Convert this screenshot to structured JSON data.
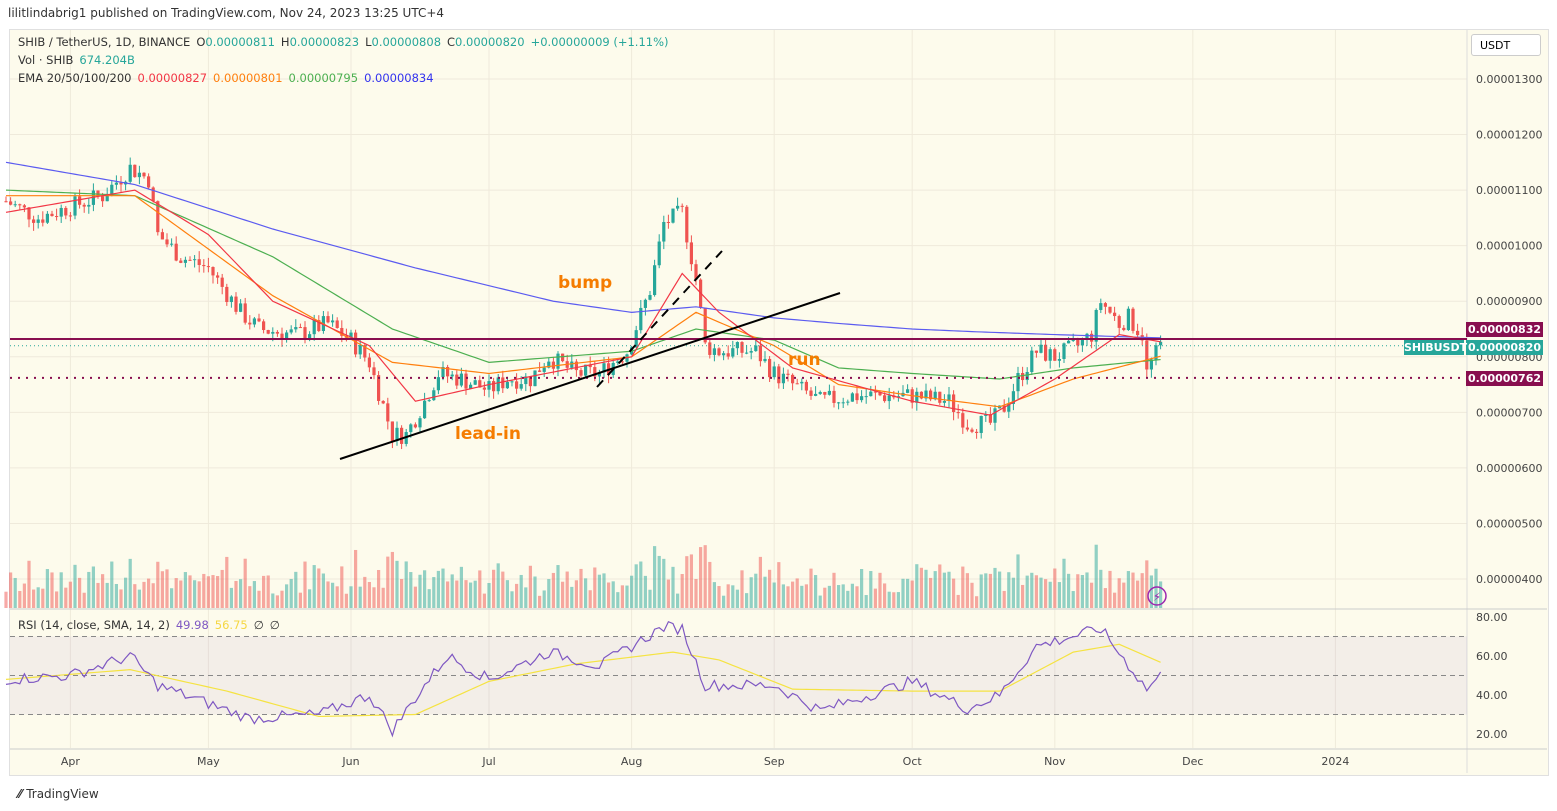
{
  "published": "lilitlindabrig1 published on TradingView.com, Nov 24, 2023 13:25 UTC+4",
  "legend": {
    "symbol": "SHIB / TetherUS, 1D, BINANCE",
    "o_label": "O",
    "o": "0.00000811",
    "h_label": "H",
    "h": "0.00000823",
    "l_label": "L",
    "l": "0.00000808",
    "c_label": "C",
    "c": "0.00000820",
    "change": "+0.00000009 (+1.11%)",
    "vol_label": "Vol · SHIB",
    "vol": "674.204B",
    "ema_label": "EMA 20/50/100/200",
    "ema20": "0.00000827",
    "ema50": "0.00000801",
    "ema100": "0.00000795",
    "ema200": "0.00000834",
    "rsi_label": "RSI (14, close, SMA, 14, 2)",
    "rsi": "49.98",
    "rsi_sma": "56.75",
    "rsi_extra1": "∅",
    "rsi_extra2": "∅"
  },
  "currency_button": "USDT",
  "price_tags": {
    "upper": "0.00000832",
    "symbol": "SHIBUSDT",
    "last": "0.00000820",
    "lower": "0.00000762"
  },
  "annotations": {
    "bump": "bump",
    "run": "run",
    "lead_in": "lead-in"
  },
  "footer": "TradingView",
  "colors": {
    "up": "#26a69a",
    "down": "#ef5350",
    "ema20": "#f23645",
    "ema50": "#ff7f0e",
    "ema100": "#4caf50",
    "ema200": "#5b5bf0",
    "rsi": "#7e57c2",
    "rsi_sma": "#f5e342",
    "level": "#880e4f"
  },
  "chart_data": {
    "type": "candlestick",
    "price_unit": "1e-6 USDT",
    "y_ticks": [
      "0.00001300",
      "0.00001200",
      "0.00001100",
      "0.00001000",
      "0.00000900",
      "0.00000800",
      "0.00000700",
      "0.00000600",
      "0.00000500",
      "0.00000400"
    ],
    "x_ticks": [
      "Apr",
      "May",
      "Jun",
      "Jul",
      "Aug",
      "Sep",
      "Oct",
      "Nov",
      "Dec",
      "2024"
    ],
    "rsi_ticks": [
      "80.00",
      "60.00",
      "40.00",
      "20.00"
    ],
    "levels": [
      8.32,
      7.62
    ],
    "close_approx": [
      [
        "2023-03-18",
        10.8
      ],
      [
        "2023-03-25",
        10.5
      ],
      [
        "2023-04-01",
        10.7
      ],
      [
        "2023-04-08",
        10.9
      ],
      [
        "2023-04-14",
        11.4
      ],
      [
        "2023-04-18",
        11.2
      ],
      [
        "2023-04-20",
        10.2
      ],
      [
        "2023-04-25",
        9.8
      ],
      [
        "2023-05-01",
        9.6
      ],
      [
        "2023-05-08",
        8.8
      ],
      [
        "2023-05-12",
        8.5
      ],
      [
        "2023-05-20",
        8.4
      ],
      [
        "2023-05-27",
        8.6
      ],
      [
        "2023-06-01",
        8.3
      ],
      [
        "2023-06-05",
        7.9
      ],
      [
        "2023-06-10",
        6.6
      ],
      [
        "2023-06-13",
        6.6
      ],
      [
        "2023-06-17",
        7.2
      ],
      [
        "2023-06-20",
        7.7
      ],
      [
        "2023-06-25",
        7.6
      ],
      [
        "2023-07-01",
        7.4
      ],
      [
        "2023-07-05",
        7.6
      ],
      [
        "2023-07-10",
        7.6
      ],
      [
        "2023-07-14",
        8.0
      ],
      [
        "2023-07-20",
        7.7
      ],
      [
        "2023-07-25",
        7.7
      ],
      [
        "2023-07-31",
        8.1
      ],
      [
        "2023-08-05",
        9.2
      ],
      [
        "2023-08-08",
        10.4
      ],
      [
        "2023-08-12",
        10.6
      ],
      [
        "2023-08-15",
        9.4
      ],
      [
        "2023-08-17",
        8.2
      ],
      [
        "2023-08-20",
        8.1
      ],
      [
        "2023-08-28",
        8.1
      ],
      [
        "2023-09-01",
        7.7
      ],
      [
        "2023-09-05",
        7.5
      ],
      [
        "2023-09-11",
        7.2
      ],
      [
        "2023-09-18",
        7.3
      ],
      [
        "2023-09-25",
        7.3
      ],
      [
        "2023-10-01",
        7.3
      ],
      [
        "2023-10-09",
        7.2
      ],
      [
        "2023-10-13",
        6.8
      ],
      [
        "2023-10-18",
        6.8
      ],
      [
        "2023-10-21",
        7.1
      ],
      [
        "2023-10-24",
        7.6
      ],
      [
        "2023-10-28",
        8.1
      ],
      [
        "2023-11-01",
        8.0
      ],
      [
        "2023-11-06",
        8.2
      ],
      [
        "2023-11-09",
        8.4
      ],
      [
        "2023-11-11",
        9.0
      ],
      [
        "2023-11-15",
        8.6
      ],
      [
        "2023-11-17",
        8.7
      ],
      [
        "2023-11-20",
        8.4
      ],
      [
        "2023-11-21",
        7.7
      ],
      [
        "2023-11-22",
        7.9
      ],
      [
        "2023-11-24",
        8.2
      ]
    ],
    "ema20": [
      [
        "2023-03-18",
        10.6
      ],
      [
        "2023-04-15",
        11.0
      ],
      [
        "2023-05-01",
        10.2
      ],
      [
        "2023-05-15",
        9.0
      ],
      [
        "2023-06-05",
        8.2
      ],
      [
        "2023-06-15",
        7.2
      ],
      [
        "2023-07-01",
        7.5
      ],
      [
        "2023-08-01",
        8.0
      ],
      [
        "2023-08-12",
        9.5
      ],
      [
        "2023-08-20",
        8.8
      ],
      [
        "2023-09-05",
        7.8
      ],
      [
        "2023-10-01",
        7.2
      ],
      [
        "2023-10-18",
        6.95
      ],
      [
        "2023-11-01",
        7.6
      ],
      [
        "2023-11-15",
        8.4
      ],
      [
        "2023-11-24",
        8.27
      ]
    ],
    "ema50": [
      [
        "2023-03-18",
        10.9
      ],
      [
        "2023-04-15",
        10.9
      ],
      [
        "2023-05-15",
        9.1
      ],
      [
        "2023-06-10",
        7.9
      ],
      [
        "2023-07-01",
        7.7
      ],
      [
        "2023-08-01",
        8.0
      ],
      [
        "2023-08-15",
        8.8
      ],
      [
        "2023-09-01",
        8.2
      ],
      [
        "2023-09-15",
        7.5
      ],
      [
        "2023-10-01",
        7.3
      ],
      [
        "2023-10-20",
        7.1
      ],
      [
        "2023-11-05",
        7.6
      ],
      [
        "2023-11-24",
        8.01
      ]
    ],
    "ema100": [
      [
        "2023-03-18",
        11.0
      ],
      [
        "2023-04-15",
        10.9
      ],
      [
        "2023-05-15",
        9.8
      ],
      [
        "2023-06-10",
        8.5
      ],
      [
        "2023-07-01",
        7.9
      ],
      [
        "2023-08-01",
        8.1
      ],
      [
        "2023-08-15",
        8.5
      ],
      [
        "2023-09-01",
        8.3
      ],
      [
        "2023-09-15",
        7.8
      ],
      [
        "2023-10-01",
        7.7
      ],
      [
        "2023-10-20",
        7.6
      ],
      [
        "2023-11-05",
        7.8
      ],
      [
        "2023-11-24",
        7.95
      ]
    ],
    "ema200": [
      [
        "2023-03-18",
        11.5
      ],
      [
        "2023-04-15",
        11.1
      ],
      [
        "2023-05-15",
        10.3
      ],
      [
        "2023-06-15",
        9.6
      ],
      [
        "2023-07-15",
        9.0
      ],
      [
        "2023-08-01",
        8.8
      ],
      [
        "2023-08-15",
        8.9
      ],
      [
        "2023-09-01",
        8.7
      ],
      [
        "2023-09-15",
        8.6
      ],
      [
        "2023-10-01",
        8.5
      ],
      [
        "2023-10-15",
        8.45
      ],
      [
        "2023-11-01",
        8.4
      ],
      [
        "2023-11-24",
        8.34
      ]
    ],
    "rsi": [
      [
        "2023-03-18",
        48
      ],
      [
        "2023-04-01",
        50
      ],
      [
        "2023-04-14",
        60
      ],
      [
        "2023-04-20",
        45
      ],
      [
        "2023-05-10",
        28
      ],
      [
        "2023-05-25",
        30
      ],
      [
        "2023-06-05",
        40
      ],
      [
        "2023-06-10",
        22
      ],
      [
        "2023-06-17",
        45
      ],
      [
        "2023-06-22",
        60
      ],
      [
        "2023-07-01",
        48
      ],
      [
        "2023-07-14",
        62
      ],
      [
        "2023-07-25",
        55
      ],
      [
        "2023-08-08",
        75
      ],
      [
        "2023-08-12",
        74
      ],
      [
        "2023-08-17",
        45
      ],
      [
        "2023-09-01",
        45
      ],
      [
        "2023-09-11",
        32
      ],
      [
        "2023-10-01",
        47
      ],
      [
        "2023-10-13",
        33
      ],
      [
        "2023-10-20",
        40
      ],
      [
        "2023-10-28",
        65
      ],
      [
        "2023-11-11",
        74
      ],
      [
        "2023-11-21",
        43
      ],
      [
        "2023-11-24",
        49.98
      ]
    ],
    "rsi_sma": [
      [
        "2023-03-18",
        48
      ],
      [
        "2023-04-14",
        53
      ],
      [
        "2023-05-05",
        42
      ],
      [
        "2023-05-25",
        29
      ],
      [
        "2023-06-15",
        30
      ],
      [
        "2023-07-01",
        47
      ],
      [
        "2023-07-20",
        56
      ],
      [
        "2023-08-10",
        62
      ],
      [
        "2023-08-20",
        58
      ],
      [
        "2023-09-05",
        43
      ],
      [
        "2023-10-01",
        42
      ],
      [
        "2023-10-20",
        42
      ],
      [
        "2023-11-05",
        62
      ],
      [
        "2023-11-15",
        66
      ],
      [
        "2023-11-24",
        56.75
      ]
    ]
  }
}
